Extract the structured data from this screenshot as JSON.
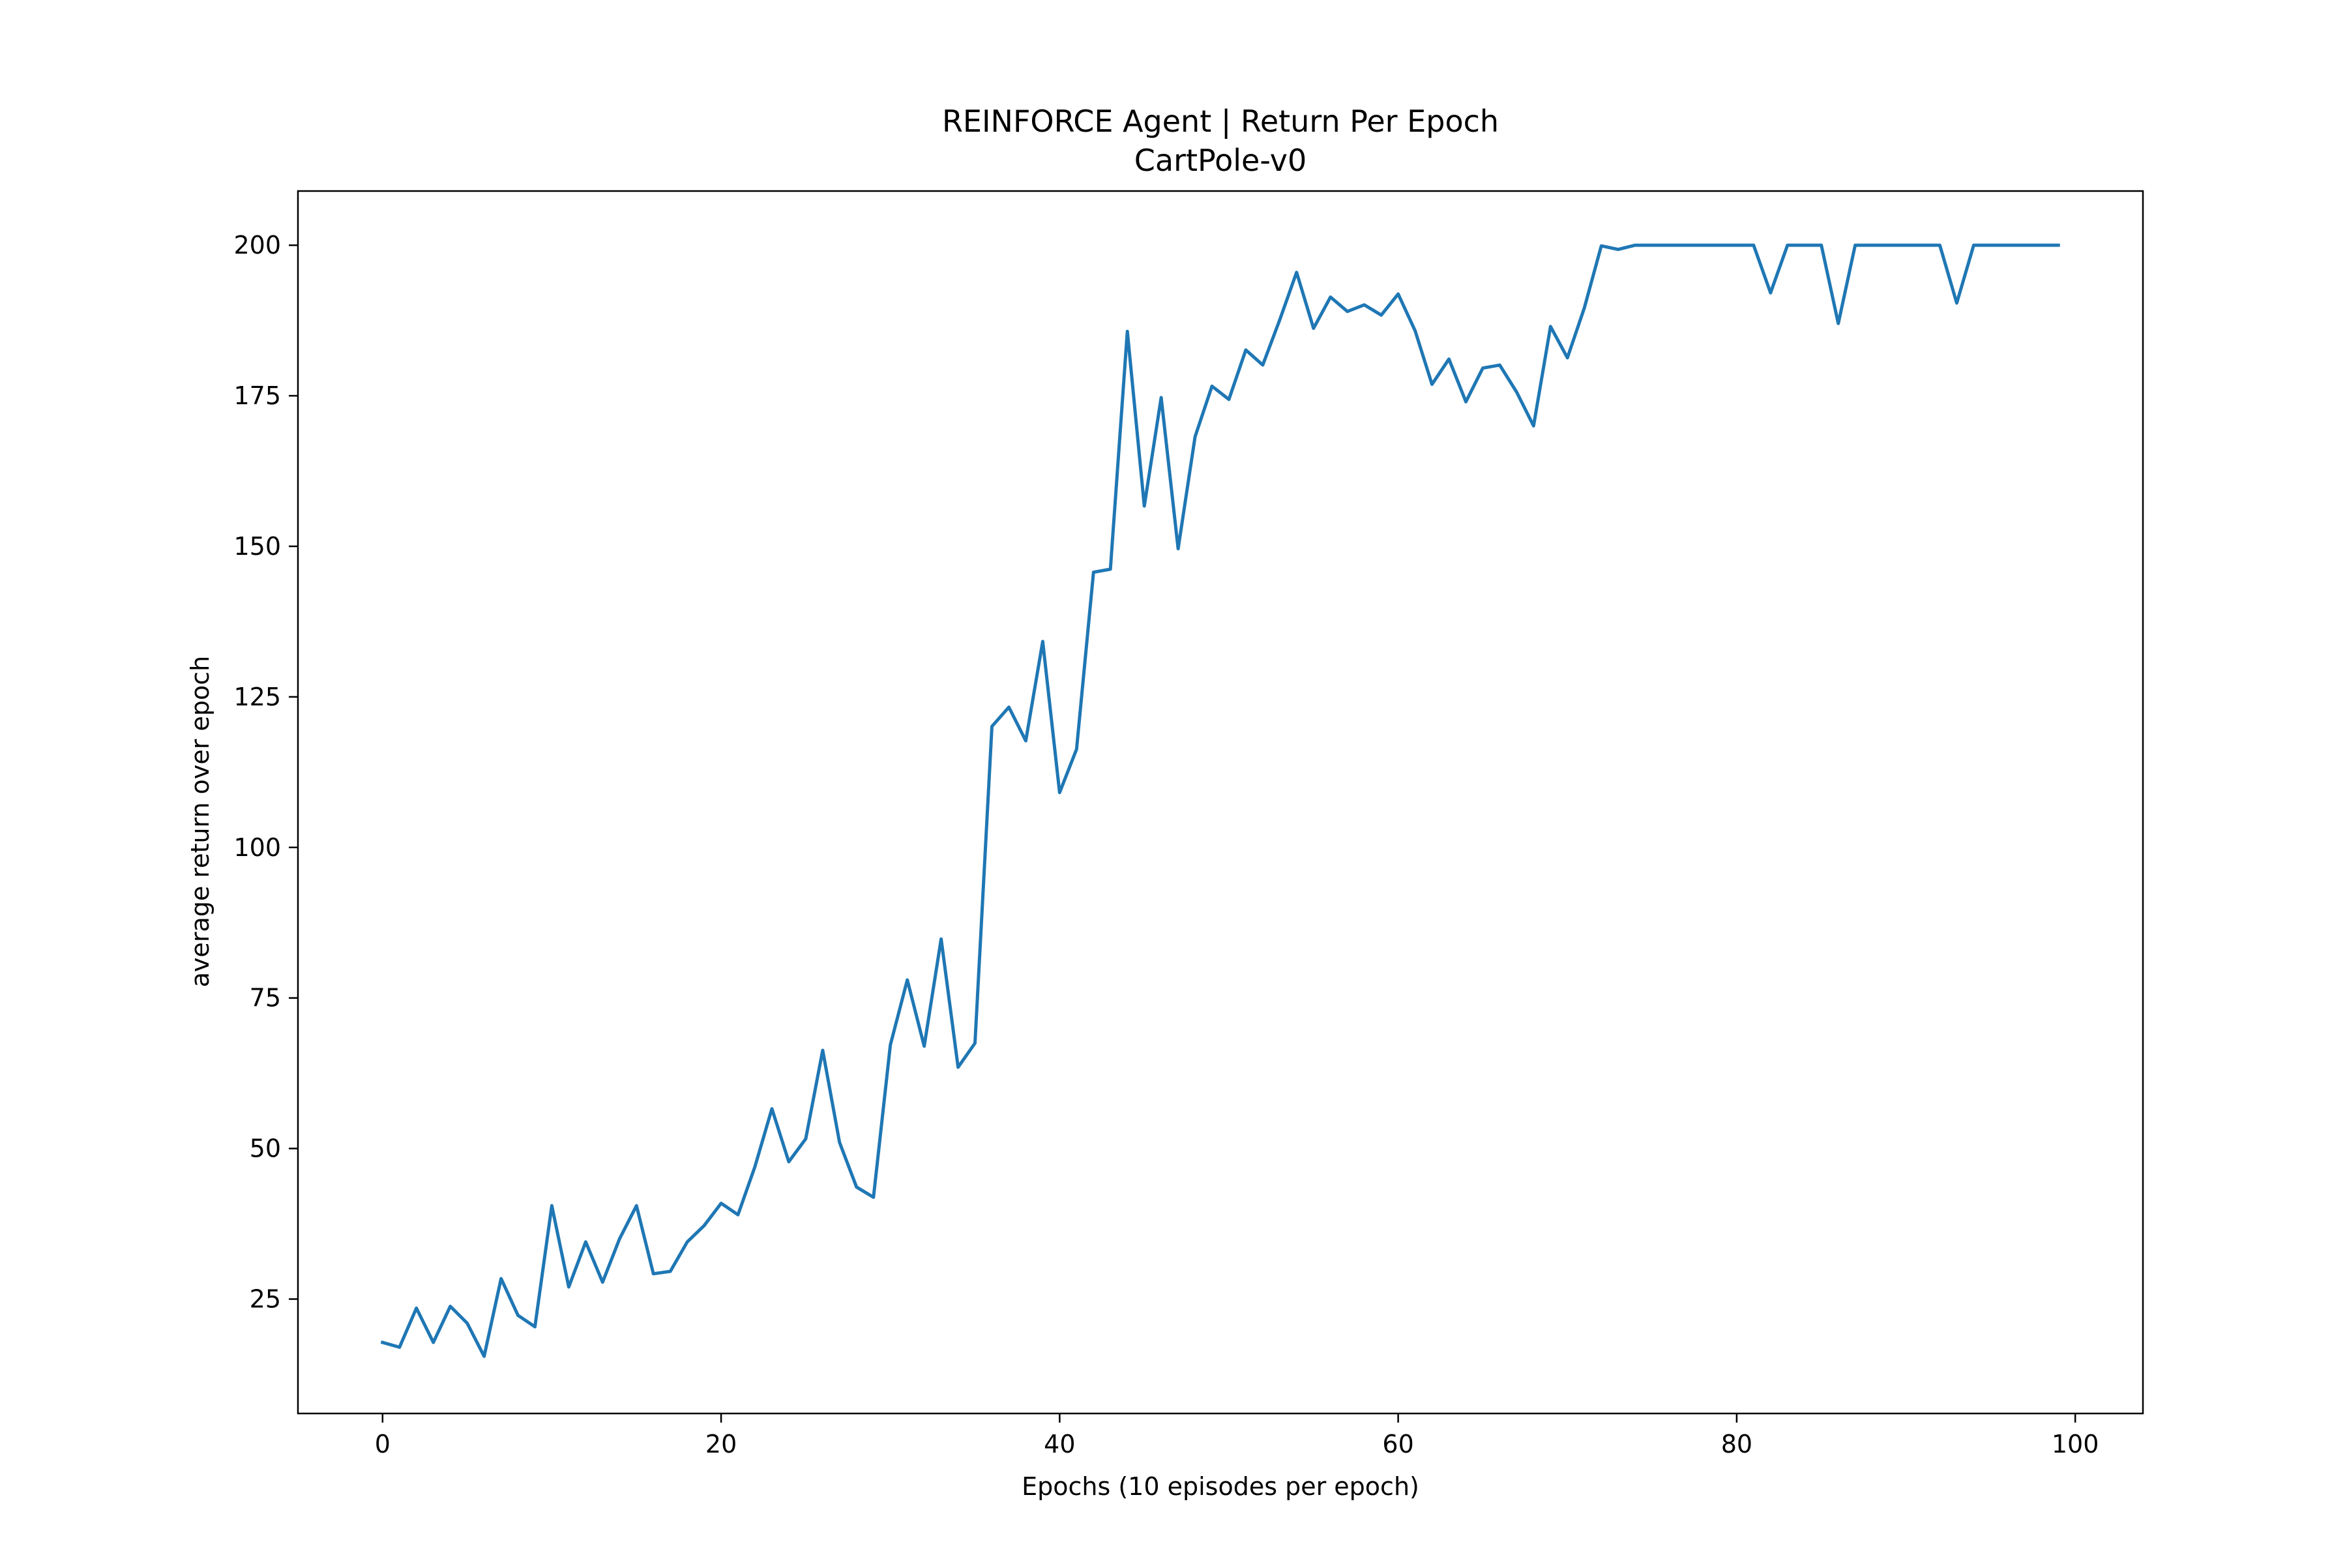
{
  "chart_data": {
    "type": "line",
    "title": "REINFORCE Agent | Return Per Epoch",
    "subtitle": "CartPole-v0",
    "xlabel": "Epochs (10 episodes per epoch)",
    "ylabel": "average return over epoch",
    "xlim": [
      -5,
      104
    ],
    "ylim": [
      6,
      209
    ],
    "xticks": [
      0,
      20,
      40,
      60,
      80,
      100
    ],
    "yticks": [
      25,
      50,
      75,
      100,
      125,
      150,
      175,
      200
    ],
    "grid": false,
    "legend": "none",
    "series": [
      {
        "color": "#1f77b4",
        "x": [
          0,
          1,
          2,
          3,
          4,
          5,
          6,
          7,
          8,
          9,
          10,
          11,
          12,
          13,
          14,
          15,
          16,
          17,
          18,
          19,
          20,
          21,
          22,
          23,
          24,
          25,
          26,
          27,
          28,
          29,
          30,
          31,
          32,
          33,
          34,
          35,
          36,
          37,
          38,
          39,
          40,
          41,
          42,
          43,
          44,
          45,
          46,
          47,
          48,
          49,
          50,
          51,
          52,
          53,
          54,
          55,
          56,
          57,
          58,
          59,
          60,
          61,
          62,
          63,
          64,
          65,
          66,
          67,
          68,
          69,
          70,
          71,
          72,
          73,
          74,
          75,
          76,
          77,
          78,
          79,
          80,
          81,
          82,
          83,
          84,
          85,
          86,
          87,
          88,
          89,
          90,
          91,
          92,
          93,
          94,
          95,
          96,
          97,
          98,
          99
        ],
        "y": [
          17.8,
          17.0,
          23.5,
          17.8,
          23.8,
          21.0,
          15.5,
          28.4,
          22.3,
          20.4,
          40.5,
          27.0,
          34.5,
          27.8,
          35.0,
          40.5,
          29.2,
          29.6,
          34.5,
          37.2,
          40.9,
          39.0,
          47.0,
          56.6,
          47.8,
          51.6,
          66.3,
          51.0,
          43.6,
          41.9,
          67.2,
          78.0,
          67.0,
          84.8,
          63.5,
          67.5,
          120.1,
          123.3,
          117.7,
          134.2,
          109.1,
          116.3,
          145.7,
          146.2,
          185.7,
          156.7,
          174.7,
          149.6,
          168.2,
          176.6,
          174.4,
          182.6,
          180.1,
          187.6,
          195.5,
          186.2,
          191.4,
          189.0,
          190.1,
          188.4,
          191.9,
          185.8,
          176.9,
          181.1,
          174.0,
          179.6,
          180.1,
          175.6,
          170.0,
          186.5,
          181.3,
          189.6,
          199.9,
          199.3,
          200.0,
          200.0,
          200.0,
          200.0,
          200.0,
          200.0,
          200.0,
          200.0,
          192.1,
          200.0,
          200.0,
          200.0,
          187.0,
          200.0,
          200.0,
          200.0,
          200.0,
          200.0,
          200.0,
          190.4,
          200.0,
          200.0,
          200.0,
          200.0,
          200.0,
          200.0
        ]
      }
    ]
  }
}
